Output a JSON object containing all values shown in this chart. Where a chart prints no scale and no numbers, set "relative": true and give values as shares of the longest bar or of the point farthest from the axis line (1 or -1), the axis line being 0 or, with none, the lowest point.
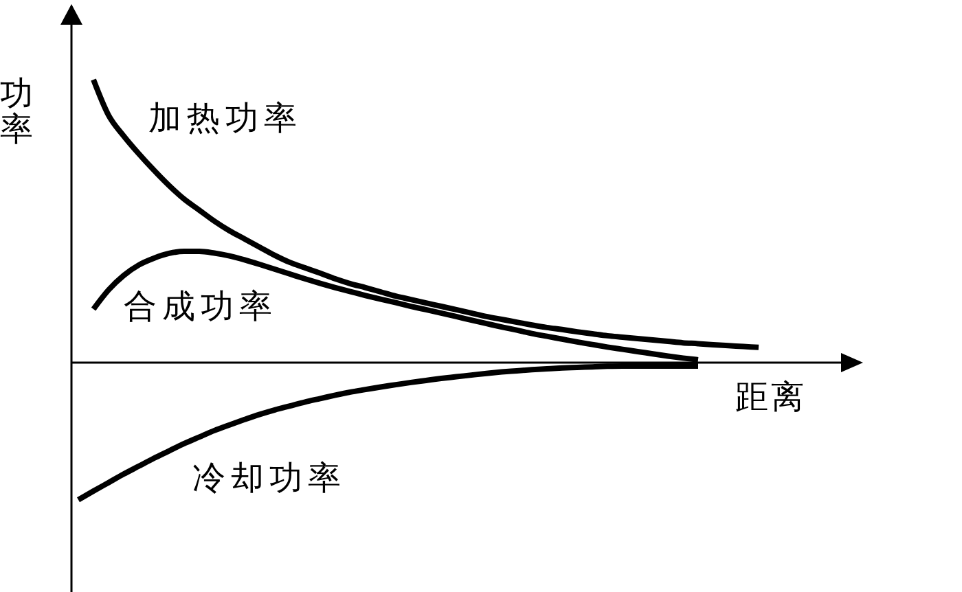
{
  "chart_data": {
    "type": "line",
    "relative": true,
    "xlabel": "距离",
    "ylabel": "功率",
    "categories": [
      null,
      null,
      null,
      null,
      null,
      null,
      null,
      null,
      null,
      null,
      null,
      null,
      null,
      null,
      null,
      null,
      null,
      null,
      null,
      null,
      null,
      null,
      null,
      null,
      null,
      null,
      null,
      null,
      null,
      null,
      null,
      null,
      null,
      null,
      null,
      null,
      null,
      null,
      null,
      null,
      null,
      null,
      null,
      null,
      null,
      null
    ],
    "series": [
      {
        "name": "加热功率",
        "color": "#000000",
        "values": [
          null,
          1.0,
          0.874,
          0.801,
          0.738,
          0.68,
          0.626,
          0.578,
          0.539,
          0.5,
          0.466,
          0.437,
          0.408,
          0.379,
          0.354,
          0.335,
          0.316,
          0.296,
          0.279,
          0.265,
          0.25,
          0.235,
          0.223,
          0.211,
          0.199,
          0.187,
          0.175,
          0.163,
          0.153,
          0.143,
          0.133,
          0.124,
          0.117,
          0.109,
          0.102,
          0.095,
          0.09,
          0.085,
          0.08,
          0.075,
          0.07,
          0.067,
          0.063,
          0.06,
          0.057,
          0.054
        ]
      },
      {
        "name": "合成功率",
        "color": "#000000",
        "values": [
          null,
          0.189,
          0.257,
          0.308,
          0.345,
          0.369,
          0.386,
          0.393,
          0.393,
          0.387,
          0.377,
          0.363,
          0.347,
          0.33,
          0.313,
          0.296,
          0.28,
          0.265,
          0.251,
          0.237,
          0.224,
          0.212,
          0.199,
          0.187,
          0.175,
          0.163,
          0.15,
          0.138,
          0.126,
          0.115,
          0.103,
          0.093,
          0.083,
          0.073,
          0.064,
          0.055,
          0.047,
          0.039,
          0.031,
          0.023,
          0.016,
          0.01,
          null,
          null,
          null,
          null
        ]
      },
      {
        "name": "冷却功率",
        "color": "#000000",
        "values": [
          -0.485,
          -0.454,
          -0.424,
          -0.394,
          -0.366,
          -0.338,
          -0.312,
          -0.286,
          -0.263,
          -0.24,
          -0.22,
          -0.201,
          -0.183,
          -0.167,
          -0.153,
          -0.139,
          -0.127,
          -0.115,
          -0.104,
          -0.095,
          -0.086,
          -0.078,
          -0.07,
          -0.063,
          -0.056,
          -0.05,
          -0.044,
          -0.038,
          -0.033,
          -0.029,
          -0.025,
          -0.022,
          -0.019,
          -0.017,
          -0.015,
          -0.013,
          -0.012,
          -0.012,
          -0.012,
          -0.012,
          -0.012,
          -0.012,
          null,
          null,
          null,
          null
        ]
      }
    ]
  }
}
